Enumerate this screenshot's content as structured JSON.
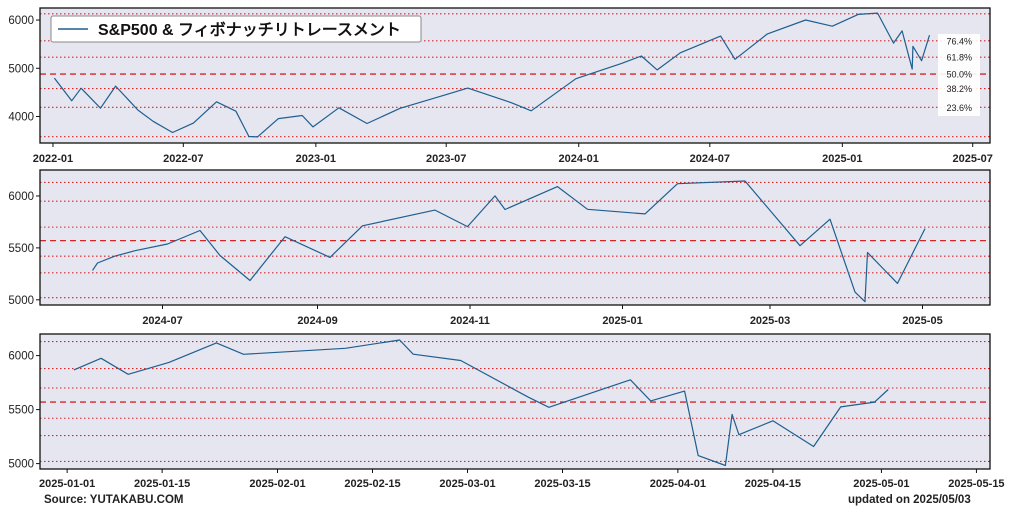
{
  "chart_data": [
    {
      "type": "line",
      "title": "S&P500 & フィボナッチリトレースメント",
      "legend_location": "top-left",
      "series": [
        {
          "name": "S&P500"
        }
      ],
      "ylim": [
        3450,
        6250
      ],
      "yticks": [
        4000,
        5000,
        6000
      ],
      "xticks": [
        "2022-01",
        "2022-07",
        "2023-01",
        "2023-07",
        "2024-01",
        "2024-07",
        "2025-01",
        "2025-07"
      ],
      "fib_levels": [
        {
          "label": "",
          "value": 6130
        },
        {
          "label": "76.4%",
          "value": 5570
        },
        {
          "label": "61.8%",
          "value": 5230
        },
        {
          "label": "50.0%",
          "value": 4880
        },
        {
          "label": "38.2%",
          "value": 4580
        },
        {
          "label": "23.6%",
          "value": 4190
        },
        {
          "label": "",
          "value": 3580
        }
      ],
      "points": [
        [
          "2022-01-03",
          4797
        ],
        [
          "2022-01-27",
          4326
        ],
        [
          "2022-02-09",
          4587
        ],
        [
          "2022-03-08",
          4171
        ],
        [
          "2022-03-29",
          4631
        ],
        [
          "2022-04-29",
          4132
        ],
        [
          "2022-05-20",
          3901
        ],
        [
          "2022-06-16",
          3667
        ],
        [
          "2022-07-15",
          3863
        ],
        [
          "2022-08-16",
          4305
        ],
        [
          "2022-09-12",
          4110
        ],
        [
          "2022-09-30",
          3585
        ],
        [
          "2022-10-12",
          3577
        ],
        [
          "2022-11-10",
          3956
        ],
        [
          "2022-12-13",
          4020
        ],
        [
          "2022-12-28",
          3783
        ],
        [
          "2023-02-02",
          4180
        ],
        [
          "2023-03-13",
          3855
        ],
        [
          "2023-04-28",
          4169
        ],
        [
          "2023-06-30",
          4450
        ],
        [
          "2023-07-31",
          4589
        ],
        [
          "2023-09-29",
          4288
        ],
        [
          "2023-10-27",
          4117
        ],
        [
          "2023-12-28",
          4783
        ],
        [
          "2024-02-29",
          5096
        ],
        [
          "2024-03-28",
          5254
        ],
        [
          "2024-04-19",
          4967
        ],
        [
          "2024-05-21",
          5321
        ],
        [
          "2024-07-16",
          5667
        ],
        [
          "2024-08-05",
          5186
        ],
        [
          "2024-09-19",
          5713
        ],
        [
          "2024-11-11",
          6001
        ],
        [
          "2024-12-18",
          5872
        ],
        [
          "2025-01-23",
          6118
        ],
        [
          "2025-02-19",
          6144
        ],
        [
          "2025-03-13",
          5521
        ],
        [
          "2025-03-25",
          5776
        ],
        [
          "2025-04-08",
          4982
        ],
        [
          "2025-04-09",
          5456
        ],
        [
          "2025-04-21",
          5158
        ],
        [
          "2025-05-02",
          5686
        ]
      ]
    },
    {
      "type": "line",
      "ylim": [
        4950,
        6250
      ],
      "yticks": [
        5000,
        5500,
        6000
      ],
      "xticks": [
        "2024-07",
        "2024-09",
        "2024-11",
        "2025-01",
        "2025-03",
        "2025-05"
      ],
      "fib_levels": [
        6130,
        5950,
        5700,
        5570,
        5420,
        5260,
        5020
      ],
      "points": [
        [
          "2024-06-03",
          5283
        ],
        [
          "2024-06-05",
          5354
        ],
        [
          "2024-06-12",
          5421
        ],
        [
          "2024-06-20",
          5473
        ],
        [
          "2024-07-03",
          5537
        ],
        [
          "2024-07-16",
          5667
        ],
        [
          "2024-07-24",
          5427
        ],
        [
          "2024-08-05",
          5186
        ],
        [
          "2024-08-19",
          5608
        ],
        [
          "2024-09-06",
          5408
        ],
        [
          "2024-09-19",
          5713
        ],
        [
          "2024-10-18",
          5864
        ],
        [
          "2024-10-31",
          5705
        ],
        [
          "2024-11-11",
          6001
        ],
        [
          "2024-11-15",
          5870
        ],
        [
          "2024-12-06",
          6090
        ],
        [
          "2024-12-18",
          5872
        ],
        [
          "2025-01-10",
          5827
        ],
        [
          "2025-01-23",
          6118
        ],
        [
          "2025-02-19",
          6144
        ],
        [
          "2025-03-13",
          5521
        ],
        [
          "2025-03-25",
          5776
        ],
        [
          "2025-04-04",
          5074
        ],
        [
          "2025-04-08",
          4982
        ],
        [
          "2025-04-09",
          5456
        ],
        [
          "2025-04-21",
          5158
        ],
        [
          "2025-05-02",
          5686
        ]
      ]
    },
    {
      "type": "line",
      "ylim": [
        4950,
        6200
      ],
      "yticks": [
        5000,
        5500,
        6000
      ],
      "xticks": [
        "2025-01-01",
        "2025-01-15",
        "2025-02-01",
        "2025-02-15",
        "2025-03-01",
        "2025-03-15",
        "2025-04-01",
        "2025-04-15",
        "2025-05-01",
        "2025-05-15"
      ],
      "fib_levels": [
        6130,
        5880,
        5700,
        5570,
        5420,
        5260,
        5020
      ],
      "points": [
        [
          "2025-01-02",
          5868
        ],
        [
          "2025-01-06",
          5975
        ],
        [
          "2025-01-10",
          5827
        ],
        [
          "2025-01-16",
          5937
        ],
        [
          "2025-01-23",
          6118
        ],
        [
          "2025-01-27",
          6012
        ],
        [
          "2025-02-11",
          6068
        ],
        [
          "2025-02-19",
          6144
        ],
        [
          "2025-02-21",
          6013
        ],
        [
          "2025-02-28",
          5955
        ],
        [
          "2025-03-10",
          5614
        ],
        [
          "2025-03-13",
          5521
        ],
        [
          "2025-03-25",
          5776
        ],
        [
          "2025-03-28",
          5581
        ],
        [
          "2025-04-02",
          5671
        ],
        [
          "2025-04-04",
          5074
        ],
        [
          "2025-04-08",
          4982
        ],
        [
          "2025-04-09",
          5456
        ],
        [
          "2025-04-10",
          5268
        ],
        [
          "2025-04-15",
          5396
        ],
        [
          "2025-04-21",
          5158
        ],
        [
          "2025-04-25",
          5525
        ],
        [
          "2025-04-30",
          5569
        ],
        [
          "2025-05-02",
          5686
        ]
      ]
    }
  ],
  "footer": {
    "source": "Source: YUTAKABU.COM",
    "updated": "updated on 2025/05/03"
  }
}
